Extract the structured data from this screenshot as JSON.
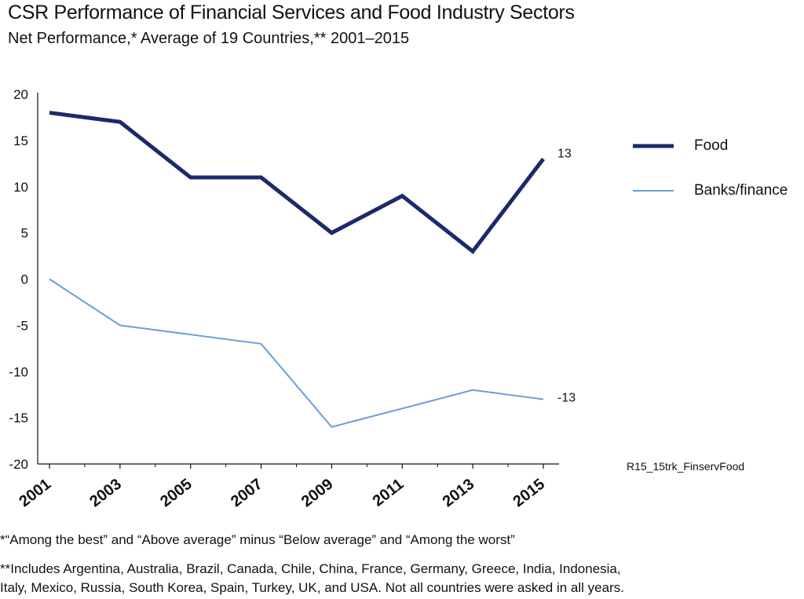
{
  "title": "CSR Performance of Financial Services and Food Industry Sectors",
  "subtitle": "Net Performance,* Average of 19 Countries,** 2001–2015",
  "source_code": "R15_15trk_FinservFood",
  "footnotes": {
    "note1": "*“Among the best” and “Above average” minus “Below average” and “Among the worst”",
    "note2_line1": "**Includes Argentina, Australia, Brazil, Canada, Chile, China, France, Germany, Greece, India, Indonesia,",
    "note2_line2": "Italy, Mexico, Russia, South Korea, Spain, Turkey, UK, and USA. Not all countries were asked in all years."
  },
  "colors": {
    "food": "#1b2a6b",
    "banks": "#6a9fd6",
    "axis": "#111111",
    "text": "#111111"
  },
  "chart_data": {
    "type": "line",
    "title": "CSR Performance of Financial Services and Food Industry Sectors",
    "subtitle": "Net Performance,* Average of 19 Countries,** 2001–2015",
    "xlabel": "",
    "ylabel": "",
    "categories": [
      "2001",
      "2003",
      "2005",
      "2007",
      "2009",
      "2011",
      "2013",
      "2015"
    ],
    "x": [
      2001,
      2003,
      2005,
      2007,
      2009,
      2011,
      2013,
      2015
    ],
    "ylim": [
      -20,
      20
    ],
    "yticks": [
      20,
      15,
      10,
      5,
      0,
      -5,
      -10,
      -15,
      -20
    ],
    "grid": false,
    "legend_position": "right",
    "series": [
      {
        "name": "Food",
        "color": "#1b2a6b",
        "x": [
          2001,
          2003,
          2005,
          2007,
          2009,
          2011,
          2013,
          2015
        ],
        "values": [
          18,
          17,
          11,
          11,
          5,
          9,
          3,
          13
        ],
        "end_label": "13"
      },
      {
        "name": "Banks/finance",
        "color": "#6a9fd6",
        "x": [
          2001,
          2003,
          2005,
          2007,
          2009,
          2011,
          2013,
          2015
        ],
        "values": [
          0,
          -5,
          -6,
          -7,
          -16,
          -14,
          -12,
          -13
        ],
        "end_label": "-13"
      }
    ]
  }
}
